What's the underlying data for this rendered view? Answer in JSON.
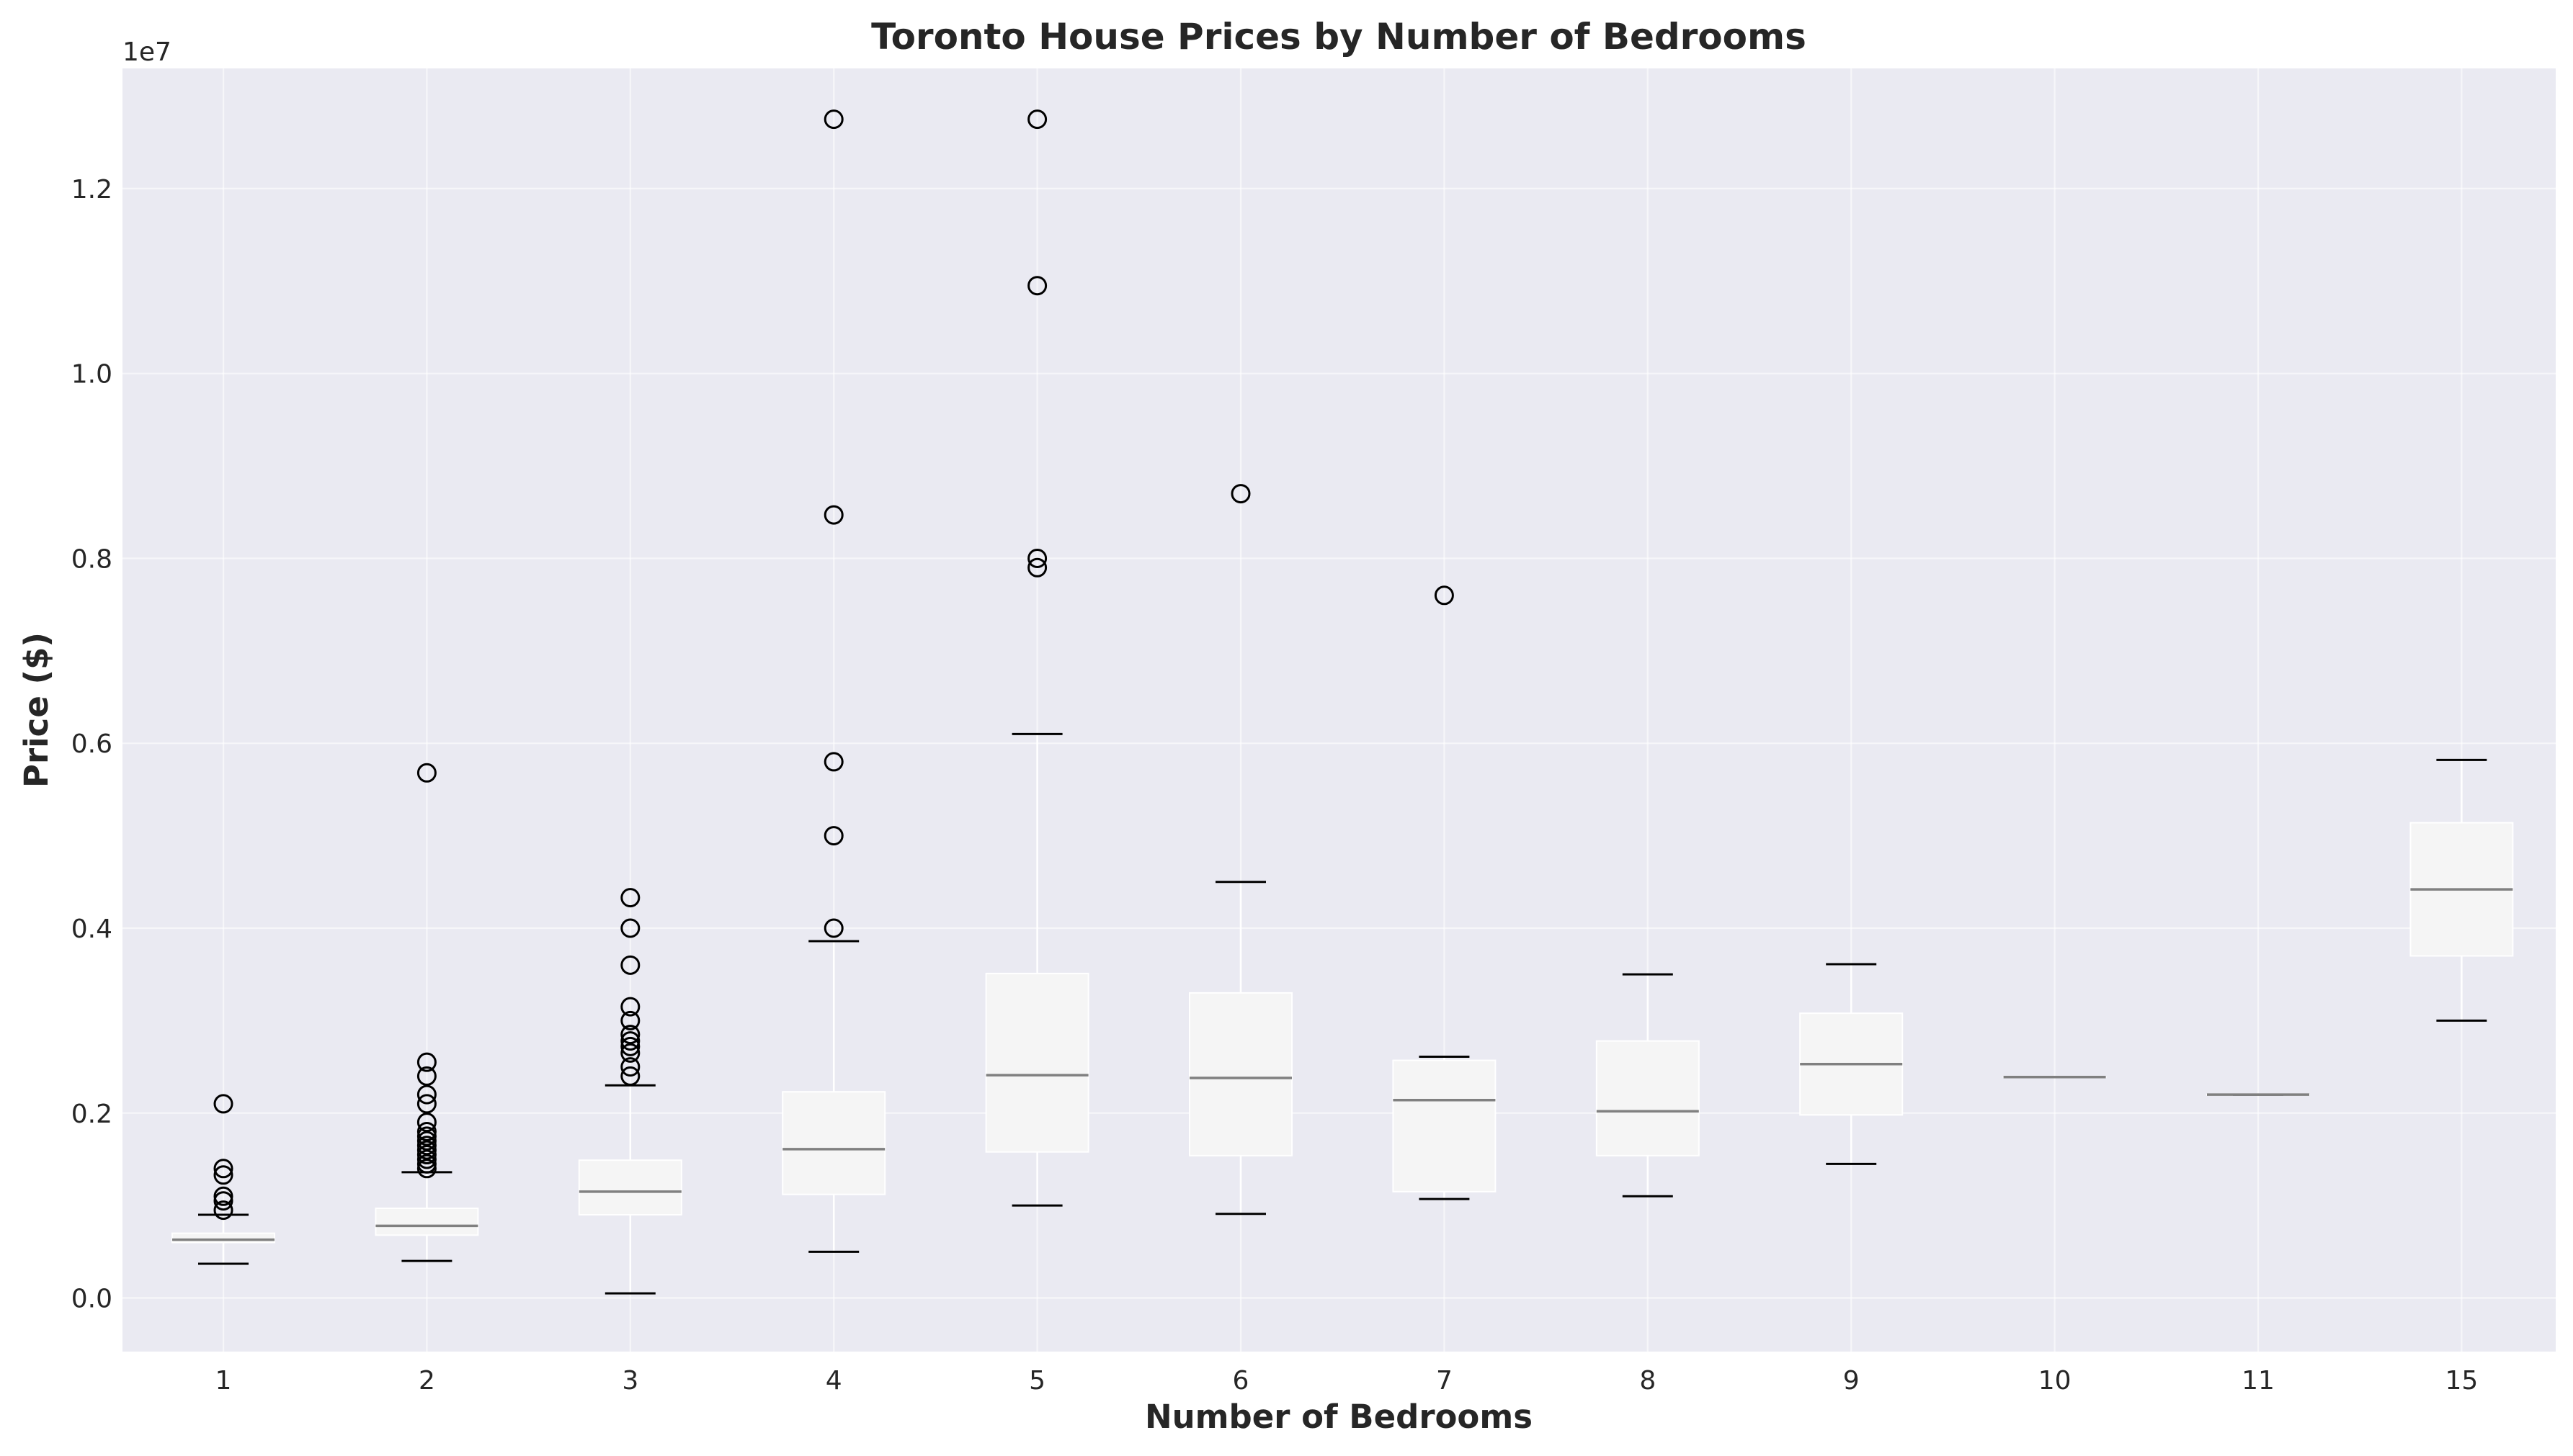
{
  "chart_data": {
    "type": "box",
    "title": "Toronto House Prices by Number of Bedrooms",
    "xlabel": "Number of Bedrooms",
    "ylabel": "Price ($)",
    "y_offset_label": "1e7",
    "ylim": [
      -580000,
      13300000
    ],
    "y_ticks": [
      0,
      2000000,
      4000000,
      6000000,
      8000000,
      10000000,
      12000000
    ],
    "y_tick_labels": [
      "0.0",
      "0.2",
      "0.4",
      "0.6",
      "0.8",
      "1.0",
      "1.2"
    ],
    "grid": true,
    "categories": [
      "1",
      "2",
      "3",
      "4",
      "5",
      "6",
      "7",
      "8",
      "9",
      "10",
      "11",
      "15"
    ],
    "boxes": [
      {
        "whisker_low": 370000,
        "q1": 600000,
        "median": 630000,
        "q3": 700000,
        "whisker_high": 900000,
        "fliers": [
          950000,
          1050000,
          1100000,
          1330000,
          1400000,
          2100000
        ]
      },
      {
        "whisker_low": 400000,
        "q1": 680000,
        "median": 780000,
        "q3": 970000,
        "whisker_high": 1360000,
        "fliers": [
          1400000,
          1450000,
          1500000,
          1550000,
          1600000,
          1650000,
          1700000,
          1750000,
          1800000,
          1900000,
          2100000,
          2200000,
          2400000,
          2550000,
          5680000
        ]
      },
      {
        "whisker_low": 50000,
        "q1": 900000,
        "median": 1150000,
        "q3": 1490000,
        "whisker_high": 2300000,
        "fliers": [
          2400000,
          2500000,
          2650000,
          2720000,
          2780000,
          2850000,
          3000000,
          3150000,
          3600000,
          4000000,
          4330000
        ]
      },
      {
        "whisker_low": 500000,
        "q1": 1120000,
        "median": 1610000,
        "q3": 2230000,
        "whisker_high": 3860000,
        "fliers": [
          4000000,
          5000000,
          5800000,
          8470000,
          12750000
        ]
      },
      {
        "whisker_low": 1000000,
        "q1": 1580000,
        "median": 2410000,
        "q3": 3510000,
        "whisker_high": 6100000,
        "fliers": [
          7900000,
          8000000,
          10950000,
          12750000
        ]
      },
      {
        "whisker_low": 910000,
        "q1": 1540000,
        "median": 2380000,
        "q3": 3300000,
        "whisker_high": 4500000,
        "fliers": [
          8700000
        ]
      },
      {
        "whisker_low": 1070000,
        "q1": 1150000,
        "median": 2140000,
        "q3": 2570000,
        "whisker_high": 2610000,
        "fliers": [
          7600000
        ]
      },
      {
        "whisker_low": 1100000,
        "q1": 1540000,
        "median": 2020000,
        "q3": 2780000,
        "whisker_high": 3500000,
        "fliers": []
      },
      {
        "whisker_low": 1450000,
        "q1": 1980000,
        "median": 2530000,
        "q3": 3080000,
        "whisker_high": 3610000,
        "fliers": []
      },
      {
        "whisker_low": 2390000,
        "q1": 2390000,
        "median": 2390000,
        "q3": 2390000,
        "whisker_high": 2390000,
        "fliers": []
      },
      {
        "whisker_low": 2200000,
        "q1": 2200000,
        "median": 2200000,
        "q3": 2200000,
        "whisker_high": 2200000,
        "fliers": []
      },
      {
        "whisker_low": 3000000,
        "q1": 3700000,
        "median": 4420000,
        "q3": 5140000,
        "whisker_high": 5820000,
        "fliers": []
      }
    ],
    "colors": {
      "plot_background": "#eaeaf2",
      "box_fill": "#f5f5f5",
      "box_edge": "#ffffff",
      "median": "#808080",
      "whisker": "#ffffff",
      "cap": "#000000",
      "flier_edge": "#000000"
    }
  }
}
